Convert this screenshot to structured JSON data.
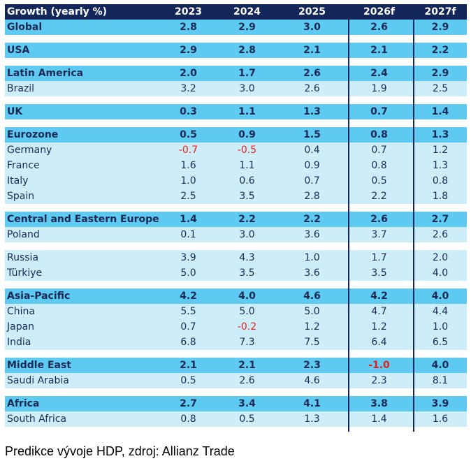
{
  "chart_data": {
    "type": "table",
    "columns": [
      "Growth (yearly %)",
      "2023",
      "2024",
      "2025",
      "2026f",
      "2027f"
    ],
    "groups": [
      [
        {
          "label": "Global",
          "bold": true,
          "values": [
            "2.8",
            "2.9",
            "3.0",
            "2.6",
            "2.9"
          ]
        }
      ],
      [
        {
          "label": "USA",
          "bold": true,
          "values": [
            "2.9",
            "2.8",
            "2.1",
            "2.1",
            "2.2"
          ]
        }
      ],
      [
        {
          "label": "Latin America",
          "bold": true,
          "values": [
            "2.0",
            "1.7",
            "2.6",
            "2.4",
            "2.9"
          ]
        },
        {
          "label": "Brazil",
          "bold": false,
          "values": [
            "3.2",
            "3.0",
            "2.6",
            "1.9",
            "2.5"
          ]
        }
      ],
      [
        {
          "label": "UK",
          "bold": true,
          "values": [
            "0.3",
            "1.1",
            "1.3",
            "0.7",
            "1.4"
          ]
        }
      ],
      [
        {
          "label": "Eurozone",
          "bold": true,
          "values": [
            "0.5",
            "0.9",
            "1.5",
            "0.8",
            "1.3"
          ]
        },
        {
          "label": "Germany",
          "bold": false,
          "values": [
            "-0.7",
            "-0.5",
            "0.4",
            "0.7",
            "1.2"
          ]
        },
        {
          "label": "France",
          "bold": false,
          "values": [
            "1.6",
            "1.1",
            "0.9",
            "0.8",
            "1.3"
          ]
        },
        {
          "label": "Italy",
          "bold": false,
          "values": [
            "1.0",
            "0.6",
            "0.7",
            "0.5",
            "0.8"
          ]
        },
        {
          "label": "Spain",
          "bold": false,
          "values": [
            "2.5",
            "3.5",
            "2.8",
            "2.2",
            "1.8"
          ]
        }
      ],
      [
        {
          "label": "Central and Eastern Europe",
          "bold": true,
          "values": [
            "1.4",
            "2.2",
            "2.2",
            "2.6",
            "2.7"
          ]
        },
        {
          "label": "Poland",
          "bold": false,
          "values": [
            "0.1",
            "3.0",
            "3.6",
            "3.7",
            "2.6"
          ]
        }
      ],
      [
        {
          "label": "Russia",
          "bold": false,
          "values": [
            "3.9",
            "4.3",
            "1.0",
            "1.7",
            "2.0"
          ]
        },
        {
          "label": "Türkiye",
          "bold": false,
          "values": [
            "5.0",
            "3.5",
            "3.6",
            "3.5",
            "4.0"
          ]
        }
      ],
      [
        {
          "label": "Asia-Pacific",
          "bold": true,
          "values": [
            "4.2",
            "4.0",
            "4.6",
            "4.2",
            "4.0"
          ]
        },
        {
          "label": "China",
          "bold": false,
          "values": [
            "5.5",
            "5.0",
            "5.0",
            "4.7",
            "4.4"
          ]
        },
        {
          "label": "Japan",
          "bold": false,
          "values": [
            "0.7",
            "-0.2",
            "1.2",
            "1.2",
            "1.0"
          ]
        },
        {
          "label": "India",
          "bold": false,
          "values": [
            "6.8",
            "7.3",
            "7.5",
            "6.4",
            "6.5"
          ]
        }
      ],
      [
        {
          "label": "Middle East",
          "bold": true,
          "values": [
            "2.1",
            "2.1",
            "2.3",
            "-1.0",
            "4.0"
          ]
        },
        {
          "label": "Saudi Arabia",
          "bold": false,
          "values": [
            "0.5",
            "2.6",
            "4.6",
            "2.3",
            "8.1"
          ]
        }
      ],
      [
        {
          "label": "Africa",
          "bold": true,
          "values": [
            "2.7",
            "3.4",
            "4.1",
            "3.8",
            "3.9"
          ]
        },
        {
          "label": "South Africa",
          "bold": false,
          "values": [
            "0.8",
            "0.5",
            "1.3",
            "1.4",
            "1.6"
          ]
        }
      ]
    ],
    "colors": {
      "header": "#13275a",
      "group_row": "#5ec9f1",
      "sub_row": "#cdeef9",
      "negative": "#e3211c"
    }
  },
  "caption": "Predikce vývoje HDP, zdroj: Allianz Trade"
}
